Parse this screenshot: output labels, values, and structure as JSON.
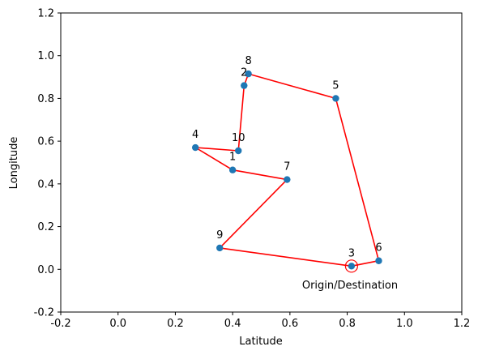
{
  "chart_data": {
    "type": "scatter",
    "title": "",
    "xlabel": "Latitude",
    "ylabel": "Longitude",
    "xlim": [
      -0.2,
      1.2
    ],
    "ylim": [
      -0.2,
      1.2
    ],
    "xticks": [
      "-0.2",
      "0.0",
      "0.2",
      "0.4",
      "0.6",
      "0.8",
      "1.0",
      "1.2"
    ],
    "yticks": [
      "-0.2",
      "0.0",
      "0.2",
      "0.4",
      "0.6",
      "0.8",
      "1.0",
      "1.2"
    ],
    "grid": false,
    "points": [
      {
        "label": "1",
        "x": 0.4,
        "y": 0.465
      },
      {
        "label": "2",
        "x": 0.44,
        "y": 0.86
      },
      {
        "label": "3",
        "x": 0.815,
        "y": 0.015
      },
      {
        "label": "4",
        "x": 0.27,
        "y": 0.57
      },
      {
        "label": "5",
        "x": 0.76,
        "y": 0.8
      },
      {
        "label": "6",
        "x": 0.91,
        "y": 0.04
      },
      {
        "label": "7",
        "x": 0.59,
        "y": 0.42
      },
      {
        "label": "8",
        "x": 0.455,
        "y": 0.915
      },
      {
        "label": "9",
        "x": 0.355,
        "y": 0.1
      },
      {
        "label": "10",
        "x": 0.42,
        "y": 0.555
      }
    ],
    "route": [
      "3",
      "9",
      "7",
      "1",
      "4",
      "10",
      "2",
      "8",
      "5",
      "6",
      "3"
    ],
    "origin": {
      "label": "3",
      "annotation": "Origin/Destination"
    },
    "colors": {
      "marker": "#1f77b4",
      "route": "#ff0000",
      "origin_ring": "#ff0000",
      "axes": "#000000"
    }
  }
}
